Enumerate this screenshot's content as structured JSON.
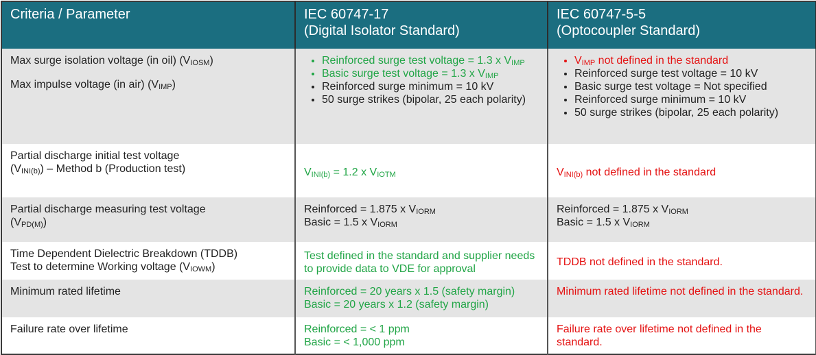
{
  "header": [
    [
      "Criteria / Parameter"
    ],
    [
      "IEC 60747-17",
      "(Digital Isolator Standard)"
    ],
    [
      "IEC 60747-5-5",
      "(Optocoupler Standard)"
    ]
  ],
  "rows": [
    {
      "criteria": {
        "lines": [
          [
            "Max surge isolation voltage (in oil) (V",
            {
              "sub": "IOSM"
            },
            ")"
          ],
          [
            "Max impulse voltage (in air) (V",
            {
              "sub": "IMP"
            },
            ")"
          ]
        ]
      },
      "digital": {
        "bullets": [
          [
            "Reinforced surge test voltage = 1.3 x V",
            {
              "sub": "IMP"
            }
          ],
          [
            "Basic surge test voltage = 1.3 x V",
            {
              "sub": "IMP"
            }
          ],
          [
            "Reinforced surge minimum = 10 kV"
          ],
          [
            "50 surge strikes (bipolar, 25 each polarity)"
          ]
        ]
      },
      "opto": {
        "bullets": [
          [
            "V",
            {
              "sub": "IMP"
            },
            " not defined in the standard"
          ],
          [
            "Reinforced surge test voltage = 10 kV"
          ],
          [
            "Basic surge test voltage = Not specified"
          ],
          [
            "Reinforced surge minimum = 10 kV"
          ],
          [
            "50 surge strikes (bipolar, 25 each polarity)"
          ]
        ]
      }
    },
    {
      "criteria": {
        "lines": [
          [
            "Partial discharge initial test voltage"
          ],
          [
            "(V",
            {
              "sub": "INI(b)"
            },
            ") – Method b (Production test)"
          ]
        ]
      },
      "digital": {
        "lines": [
          [
            "V",
            {
              "sub": "INI(b)"
            },
            " = 1.2 x V",
            {
              "sub": "IOTM"
            }
          ]
        ]
      },
      "opto": {
        "lines": [
          [
            "V",
            {
              "sub": "INI(b)"
            },
            " not defined in the standard"
          ]
        ]
      }
    },
    {
      "criteria": {
        "lines": [
          [
            "Partial discharge measuring test voltage"
          ],
          [
            "(V",
            {
              "sub": "PD(M)"
            },
            ")"
          ]
        ]
      },
      "digital": {
        "lines": [
          [
            "Reinforced = 1.875 x V",
            {
              "sub": "IORM"
            }
          ],
          [
            "Basic = 1.5 x V",
            {
              "sub": "IORM"
            }
          ]
        ]
      },
      "opto": {
        "lines": [
          [
            "Reinforced = 1.875 x V",
            {
              "sub": "IORM"
            }
          ],
          [
            "Basic = 1.5 x V",
            {
              "sub": "IORM"
            }
          ]
        ]
      }
    },
    {
      "criteria": {
        "lines": [
          [
            "Time Dependent Dielectric Breakdown (TDDB)"
          ],
          [
            "Test to determine Working voltage (V",
            {
              "sub": "IOWM"
            },
            ")"
          ]
        ]
      },
      "digital": {
        "lines": [
          [
            "Test defined in the standard and supplier needs to provide data to VDE for approval"
          ]
        ]
      },
      "opto": {
        "lines": [
          [
            "TDDB not defined in the standard."
          ]
        ]
      }
    },
    {
      "criteria": {
        "lines": [
          [
            "Minimum rated lifetime"
          ]
        ]
      },
      "digital": {
        "lines": [
          [
            "Reinforced = 20 years x 1.5 (safety margin)"
          ],
          [
            "Basic = 20 years x 1.2 (safety margin)"
          ]
        ]
      },
      "opto": {
        "lines": [
          [
            "Minimum rated lifetime not defined in the standard."
          ]
        ]
      }
    },
    {
      "criteria": {
        "lines": [
          [
            "Failure rate over lifetime"
          ]
        ]
      },
      "digital": {
        "lines": [
          [
            "Reinforced = < 1 ppm"
          ],
          [
            "Basic = < 1,000 ppm"
          ]
        ]
      },
      "opto": {
        "lines": [
          [
            "Failure rate over lifetime not defined in the standard."
          ]
        ]
      }
    }
  ]
}
